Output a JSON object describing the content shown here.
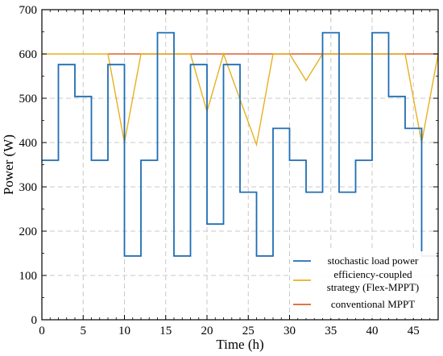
{
  "chart_data": {
    "type": "line",
    "xlabel": "Time (h)",
    "ylabel": "Power (W)",
    "xlim": [
      0,
      48
    ],
    "ylim": [
      0,
      700
    ],
    "xticks": [
      "0",
      "5",
      "10",
      "15",
      "20",
      "25",
      "30",
      "35",
      "40",
      "45"
    ],
    "xtick_values": [
      0,
      5,
      10,
      15,
      20,
      25,
      30,
      35,
      40,
      45
    ],
    "yticks": [
      "0",
      "100",
      "200",
      "300",
      "400",
      "500",
      "600",
      "700"
    ],
    "ytick_values": [
      0,
      100,
      200,
      300,
      400,
      500,
      600,
      700
    ],
    "grid": true,
    "legend_position": "lower-right",
    "series": [
      {
        "name": "stochastic load power",
        "color": "#1f6db3",
        "style": "step",
        "points": [
          [
            0,
            360
          ],
          [
            2,
            360
          ],
          [
            2,
            576
          ],
          [
            4,
            576
          ],
          [
            4,
            504
          ],
          [
            6,
            504
          ],
          [
            6,
            360
          ],
          [
            8,
            360
          ],
          [
            8,
            576
          ],
          [
            10,
            576
          ],
          [
            10,
            144
          ],
          [
            12,
            144
          ],
          [
            12,
            360
          ],
          [
            14,
            360
          ],
          [
            14,
            648
          ],
          [
            16,
            648
          ],
          [
            16,
            144
          ],
          [
            18,
            144
          ],
          [
            18,
            576
          ],
          [
            20,
            576
          ],
          [
            20,
            216
          ],
          [
            22,
            216
          ],
          [
            22,
            576
          ],
          [
            24,
            576
          ],
          [
            24,
            288
          ],
          [
            26,
            288
          ],
          [
            26,
            144
          ],
          [
            28,
            144
          ],
          [
            28,
            432
          ],
          [
            30,
            432
          ],
          [
            30,
            360
          ],
          [
            32,
            360
          ],
          [
            32,
            288
          ],
          [
            34,
            288
          ],
          [
            34,
            648
          ],
          [
            36,
            648
          ],
          [
            36,
            288
          ],
          [
            38,
            288
          ],
          [
            38,
            360
          ],
          [
            40,
            360
          ],
          [
            40,
            648
          ],
          [
            42,
            648
          ],
          [
            42,
            504
          ],
          [
            44,
            504
          ],
          [
            44,
            432
          ],
          [
            46,
            432
          ],
          [
            46,
            144
          ],
          [
            48,
            144
          ]
        ]
      },
      {
        "name": "efficiency-coupled strategy (Flex-MPPT)",
        "legend_lines": [
          "efficiency-coupled",
          "strategy (Flex-MPPT)"
        ],
        "color": "#e8b020",
        "style": "line",
        "points": [
          [
            0,
            600
          ],
          [
            8,
            600
          ],
          [
            10,
            400
          ],
          [
            12,
            600
          ],
          [
            18,
            600
          ],
          [
            20,
            470
          ],
          [
            22,
            600
          ],
          [
            26,
            395
          ],
          [
            28,
            600
          ],
          [
            30,
            600
          ],
          [
            32,
            540
          ],
          [
            34,
            600
          ],
          [
            44,
            600
          ],
          [
            46,
            400
          ],
          [
            48,
            600
          ]
        ]
      },
      {
        "name": "conventional MPPT",
        "color": "#d9622b",
        "style": "line",
        "points": [
          [
            8,
            600
          ],
          [
            48,
            600
          ]
        ]
      }
    ]
  }
}
